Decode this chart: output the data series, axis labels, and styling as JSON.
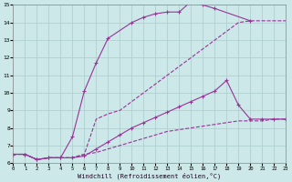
{
  "xlabel": "Windchill (Refroidissement éolien,°C)",
  "xlim": [
    0,
    23
  ],
  "ylim": [
    6,
    15
  ],
  "xticks": [
    0,
    1,
    2,
    3,
    4,
    5,
    6,
    7,
    8,
    9,
    10,
    11,
    12,
    13,
    14,
    15,
    16,
    17,
    18,
    19,
    20,
    21,
    22,
    23
  ],
  "yticks": [
    6,
    7,
    8,
    9,
    10,
    11,
    12,
    13,
    14,
    15
  ],
  "bg_color": "#cce8e8",
  "line_color": "#993399",
  "grid_color": "#aacccc",
  "line1_x": [
    0,
    1,
    2,
    3,
    4,
    5,
    6,
    7,
    8,
    10,
    11,
    12,
    13,
    14,
    15,
    16,
    17,
    20
  ],
  "line1_y": [
    6.5,
    6.5,
    6.2,
    6.3,
    6.3,
    7.5,
    10.1,
    11.7,
    13.1,
    14.0,
    14.3,
    14.5,
    14.6,
    14.6,
    15.2,
    15.0,
    14.8,
    14.1
  ],
  "line2_x": [
    0,
    1,
    2,
    3,
    4,
    5,
    6,
    7,
    8,
    9,
    10,
    11,
    12,
    13,
    14,
    15,
    16,
    17,
    18,
    19,
    20,
    21,
    22,
    23
  ],
  "line2_y": [
    6.5,
    6.5,
    6.2,
    6.3,
    6.3,
    6.3,
    6.5,
    8.5,
    8.8,
    9.0,
    9.5,
    10.0,
    10.5,
    11.0,
    11.5,
    12.0,
    12.5,
    13.0,
    13.5,
    14.0,
    14.1,
    14.1,
    14.1,
    14.1
  ],
  "line3_x": [
    0,
    1,
    2,
    3,
    4,
    5,
    6,
    7,
    8,
    9,
    10,
    11,
    12,
    13,
    14,
    15,
    16,
    17,
    18,
    19,
    20,
    21,
    22,
    23
  ],
  "line3_y": [
    6.5,
    6.5,
    6.2,
    6.3,
    6.3,
    6.3,
    6.4,
    6.8,
    7.2,
    7.6,
    8.0,
    8.3,
    8.6,
    8.9,
    9.2,
    9.5,
    9.8,
    10.1,
    10.7,
    9.3,
    8.5,
    8.5,
    8.5,
    8.5
  ],
  "line4_x": [
    0,
    1,
    2,
    3,
    4,
    5,
    6,
    7,
    8,
    9,
    10,
    11,
    12,
    13,
    14,
    15,
    16,
    17,
    18,
    19,
    20,
    21,
    22,
    23
  ],
  "line4_y": [
    6.5,
    6.5,
    6.2,
    6.3,
    6.3,
    6.3,
    6.5,
    6.6,
    6.8,
    7.0,
    7.2,
    7.4,
    7.6,
    7.8,
    7.9,
    8.0,
    8.1,
    8.2,
    8.3,
    8.4,
    8.4,
    8.4,
    8.5,
    8.5
  ],
  "has_markers1": true,
  "has_markers2": false,
  "has_markers3": true,
  "has_markers4": false
}
